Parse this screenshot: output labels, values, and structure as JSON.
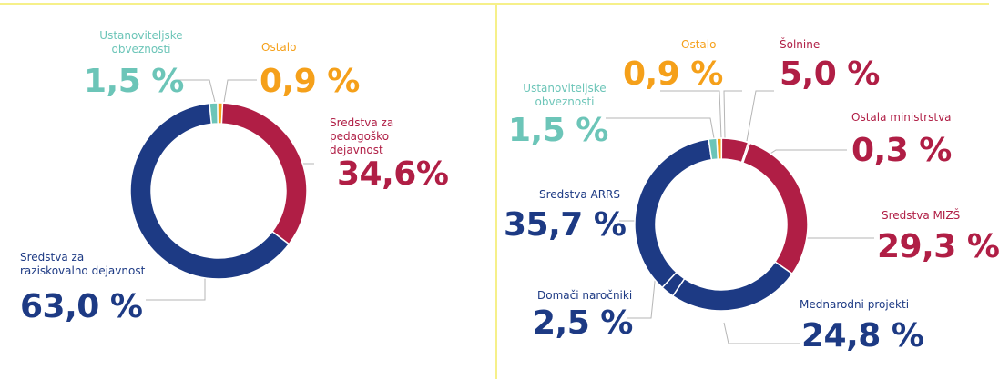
{
  "chart_data": [
    {
      "type": "pie",
      "donut": true,
      "categories": [
        "Ustanoviteljske obveznosti",
        "Ostalo",
        "Sredstva za pedagoško dejavnost",
        "Sredstva za raziskovalno dejavnost"
      ],
      "values": [
        1.5,
        0.9,
        34.6,
        63.0
      ],
      "value_labels": [
        "1,5 %",
        "0,9 %",
        "34,6%",
        "63,0 %"
      ],
      "colors": [
        "#6cc5b8",
        "#f5a01a",
        "#b01e45",
        "#1d3a84"
      ]
    },
    {
      "type": "pie",
      "donut": true,
      "categories": [
        "Ostalo",
        "Šolnine",
        "Ostala ministrstva",
        "Sredstva MIZŠ",
        "Mednarodni projekti",
        "Domači naročniki",
        "Sredstva ARRS",
        "Ustanoviteljske obveznosti"
      ],
      "values": [
        0.9,
        5.0,
        0.3,
        29.3,
        24.8,
        2.5,
        35.7,
        1.5
      ],
      "value_labels": [
        "0,9 %",
        "5,0 %",
        "0,3 %",
        "29,3 %",
        "24,8 %",
        "2,5 %",
        "35,7 %",
        "1,5 %"
      ],
      "colors": [
        "#f5a01a",
        "#b01e45",
        "#b01e45",
        "#b01e45",
        "#1d3a84",
        "#1d3a84",
        "#1d3a84",
        "#6cc5b8"
      ]
    }
  ]
}
